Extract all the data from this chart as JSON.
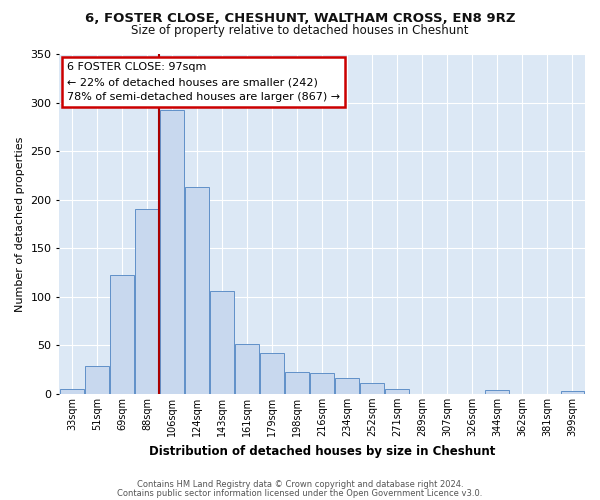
{
  "title": "6, FOSTER CLOSE, CHESHUNT, WALTHAM CROSS, EN8 9RZ",
  "subtitle": "Size of property relative to detached houses in Cheshunt",
  "xlabel": "Distribution of detached houses by size in Cheshunt",
  "ylabel": "Number of detached properties",
  "bar_labels": [
    "33sqm",
    "51sqm",
    "69sqm",
    "88sqm",
    "106sqm",
    "124sqm",
    "143sqm",
    "161sqm",
    "179sqm",
    "198sqm",
    "216sqm",
    "234sqm",
    "252sqm",
    "271sqm",
    "289sqm",
    "307sqm",
    "326sqm",
    "344sqm",
    "362sqm",
    "381sqm",
    "399sqm"
  ],
  "bar_values": [
    5,
    29,
    122,
    190,
    292,
    213,
    106,
    51,
    42,
    23,
    22,
    16,
    11,
    5,
    0,
    0,
    0,
    4,
    0,
    0,
    3
  ],
  "bar_color": "#c8d8ee",
  "bar_edge_color": "#6090c8",
  "vline_x": 3.5,
  "vline_color": "#aa0000",
  "annotation_title": "6 FOSTER CLOSE: 97sqm",
  "annotation_line2": "← 22% of detached houses are smaller (242)",
  "annotation_line3": "78% of semi-detached houses are larger (867) →",
  "annotation_box_color": "#ffffff",
  "annotation_box_edge": "#cc0000",
  "ylim": [
    0,
    350
  ],
  "yticks": [
    0,
    50,
    100,
    150,
    200,
    250,
    300,
    350
  ],
  "footer1": "Contains HM Land Registry data © Crown copyright and database right 2024.",
  "footer2": "Contains public sector information licensed under the Open Government Licence v3.0.",
  "bg_color": "#ffffff",
  "plot_bg_color": "#dce8f5",
  "grid_color": "#ffffff",
  "title_fontsize": 9.5,
  "subtitle_fontsize": 8.5,
  "ylabel_fontsize": 8,
  "xlabel_fontsize": 8.5
}
